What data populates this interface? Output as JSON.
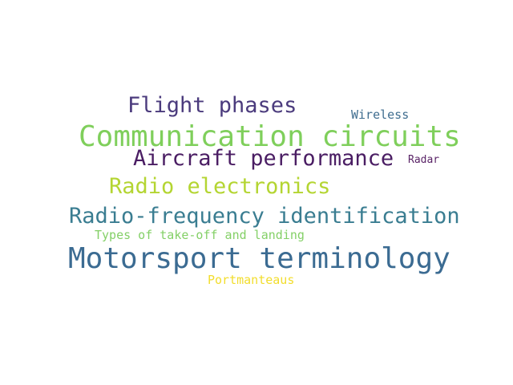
{
  "words": [
    {
      "id": "flight",
      "text": "Flight phases",
      "color": "#4b3b7d"
    },
    {
      "id": "wireless",
      "text": "Wireless",
      "color": "#3f6d8f"
    },
    {
      "id": "comm",
      "text": "Communication circuits",
      "color": "#7fcf5b"
    },
    {
      "id": "aircraft",
      "text": "Aircraft performance",
      "color": "#4a1d63"
    },
    {
      "id": "radar",
      "text": "Radar",
      "color": "#5a2467"
    },
    {
      "id": "radio",
      "text": "Radio electronics",
      "color": "#b4d532"
    },
    {
      "id": "rfid",
      "text": "Radio-frequency identification",
      "color": "#3a7d91"
    },
    {
      "id": "types",
      "text": "Types of take-off and landing",
      "color": "#84d067"
    },
    {
      "id": "motorsport",
      "text": "Motorsport terminology",
      "color": "#3b6b92"
    },
    {
      "id": "portmanteau",
      "text": "Portmanteaus",
      "color": "#f2dd2c"
    }
  ]
}
